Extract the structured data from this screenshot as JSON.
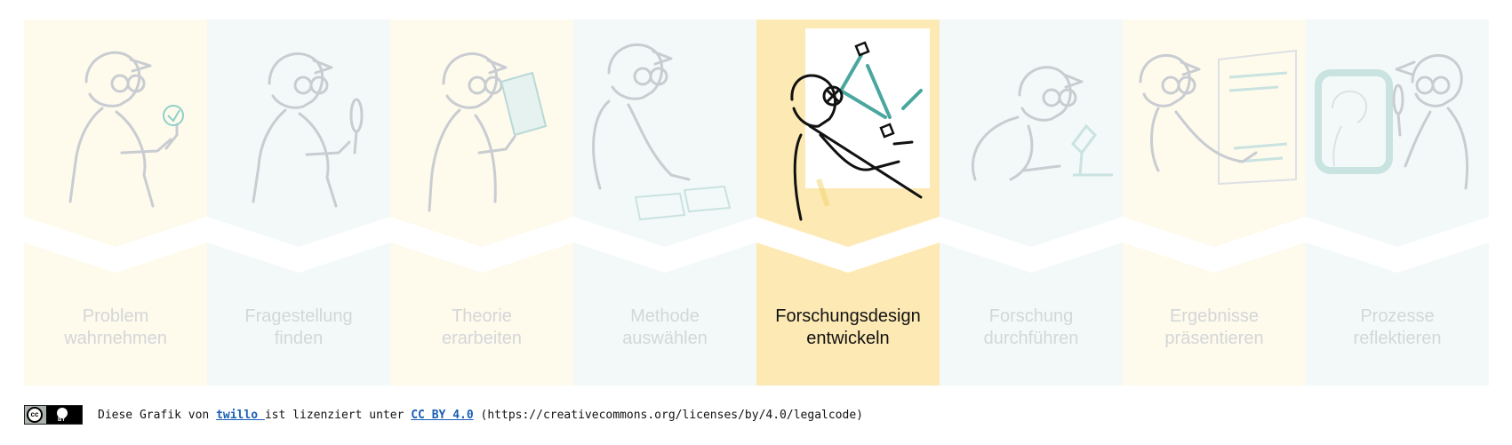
{
  "steps": [
    {
      "line1": "Problem",
      "line2": "wahrnehmen",
      "icon": "lightbulb-icon"
    },
    {
      "line1": "Fragestellung",
      "line2": "finden",
      "icon": "magnifier-icon"
    },
    {
      "line1": "Theorie",
      "line2": "erarbeiten",
      "icon": "book-icon"
    },
    {
      "line1": "Methode",
      "line2": "auswählen",
      "icon": "cards-icon"
    },
    {
      "line1": "Forschungsdesign",
      "line2": "entwickeln",
      "icon": "network-icon"
    },
    {
      "line1": "Forschung",
      "line2": "durchführen",
      "icon": "microscope-icon"
    },
    {
      "line1": "Ergebnisse",
      "line2": "präsentieren",
      "icon": "presentation-board-icon"
    },
    {
      "line1": "Prozesse",
      "line2": "reflektieren",
      "icon": "mirror-icon"
    }
  ],
  "active_step": 5,
  "colors": {
    "warm": "#fefaec",
    "cool": "#f3f9f9",
    "active": "#fde9b4",
    "inactive_text": "#d4d6d8",
    "line": "#c9cdd2",
    "accent": "#8fd0c9"
  },
  "footer": {
    "badge_cc": "cc",
    "badge_by": "BY",
    "text_before": "Diese Grafik von ",
    "link1": "twillo ",
    "text_middle": "ist lizenziert unter ",
    "link2": "CC BY 4.0",
    "text_after": " (https://creativecommons.org/licenses/by/4.0/legalcode)"
  }
}
